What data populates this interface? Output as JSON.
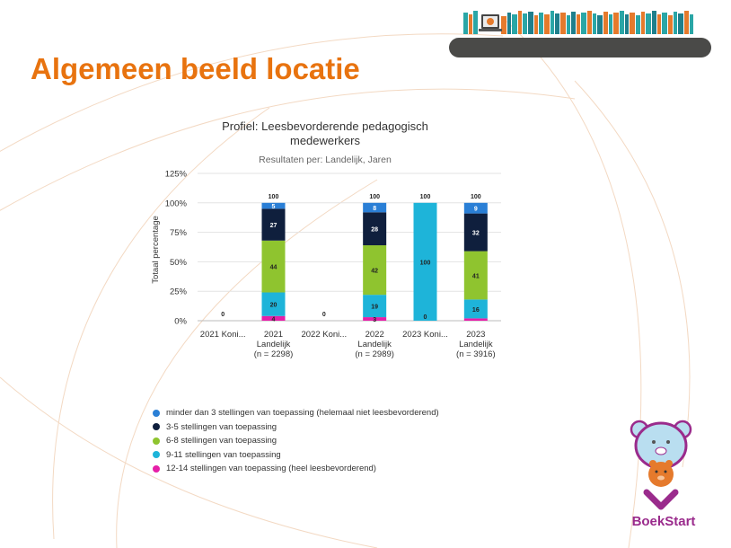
{
  "slide": {
    "title": "Algemeen beeld locatie",
    "brand": "BoekStart"
  },
  "legend": [
    {
      "label": "minder dan 3 stellingen van toepassing (helemaal niet leesbevorderend)",
      "color": "#2a7fd6"
    },
    {
      "label": "3-5 stellingen van toepassing",
      "color": "#0f1f3d"
    },
    {
      "label": "6-8 stellingen van toepassing",
      "color": "#8fc42f"
    },
    {
      "label": "9-11 stellingen van toepassing",
      "color": "#1eb4d9"
    },
    {
      "label": "12-14 stellingen van toepassing (heel leesbevorderend)",
      "color": "#e61fa8"
    }
  ],
  "chart_data": {
    "type": "bar",
    "stacked": true,
    "title": "Profiel: Leesbevorderende pedagogisch medewerkers",
    "title_lines": [
      "Profiel: Leesbevorderende pedagogisch",
      "medewerkers"
    ],
    "subtitle": "Resultaten per: Landelijk, Jaren",
    "ylabel": "Totaal percentage",
    "ylim": [
      0,
      125
    ],
    "yticks": [
      "0%",
      "25%",
      "50%",
      "75%",
      "100%",
      "125%"
    ],
    "grid": true,
    "legend_position": "bottom",
    "categories": [
      [
        "2021 Koni..."
      ],
      [
        "2021",
        "Landelijk",
        "(n = 2298)"
      ],
      [
        "2022 Koni..."
      ],
      [
        "2022",
        "Landelijk",
        "(n = 2989)"
      ],
      [
        "2023 Koni..."
      ],
      [
        "2023",
        "Landelijk",
        "(n = 3916)"
      ]
    ],
    "totals": [
      "0",
      "100",
      "0",
      "100",
      "100",
      "100"
    ],
    "series": [
      {
        "name": "12-14 stellingen van toepassing (heel leesbevorderend)",
        "color": "#e61fa8",
        "values": [
          0,
          4,
          0,
          3,
          0,
          2
        ],
        "labels": [
          "",
          "4",
          "",
          "3",
          "0",
          ""
        ]
      },
      {
        "name": "9-11 stellingen van toepassing",
        "color": "#1eb4d9",
        "values": [
          0,
          20,
          0,
          19,
          100,
          16
        ],
        "labels": [
          "",
          "20",
          "",
          "19",
          "100",
          "16"
        ]
      },
      {
        "name": "6-8 stellingen van toepassing",
        "color": "#8fc42f",
        "values": [
          0,
          44,
          0,
          42,
          0,
          41
        ],
        "labels": [
          "",
          "44",
          "",
          "42",
          "",
          "41"
        ]
      },
      {
        "name": "3-5 stellingen van toepassing",
        "color": "#0f1f3d",
        "values": [
          0,
          27,
          0,
          28,
          0,
          32
        ],
        "labels": [
          "",
          "27",
          "",
          "28",
          "",
          "32"
        ]
      },
      {
        "name": "minder dan 3 stellingen van toepassing (helemaal niet leesbevorderend)",
        "color": "#2a7fd6",
        "values": [
          0,
          5,
          0,
          8,
          0,
          9
        ],
        "labels": [
          "",
          "5",
          "",
          "8",
          "",
          "9"
        ]
      }
    ]
  }
}
